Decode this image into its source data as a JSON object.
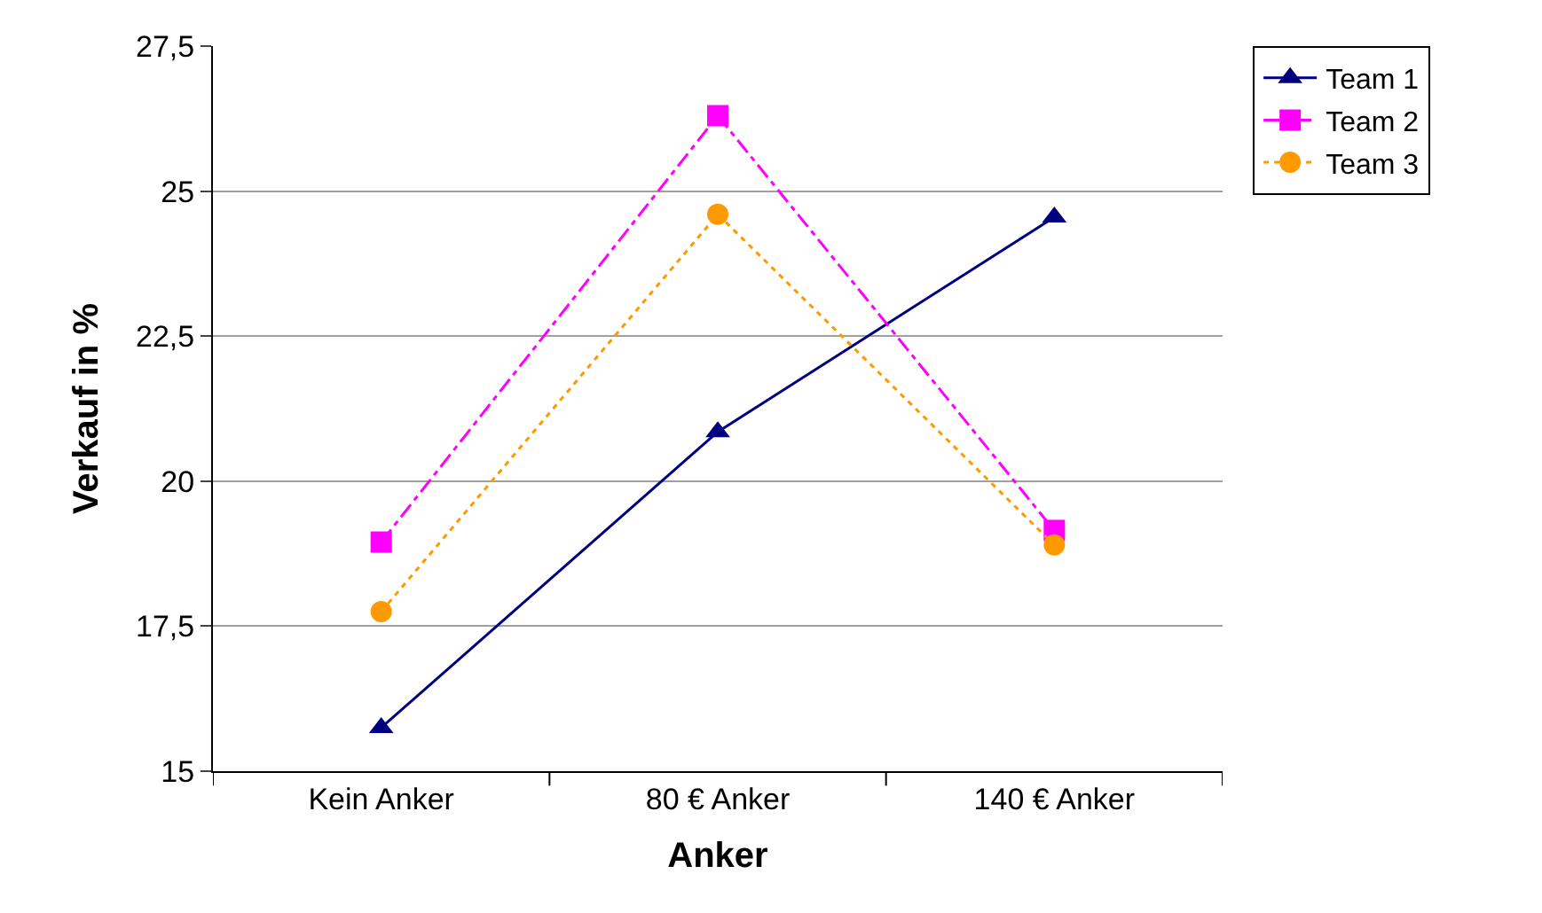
{
  "chart_data": {
    "type": "line",
    "categories": [
      "Kein Anker",
      "80 € Anker",
      "140 € Anker"
    ],
    "xlabel": "Anker",
    "ylabel": "Verkauf in %",
    "series": [
      {
        "name": "Team 1",
        "color": "#000080",
        "values": [
          15.75,
          20.85,
          24.55
        ],
        "marker": "triangle",
        "line_style": "solid"
      },
      {
        "name": "Team 2",
        "color": "#ff00ff",
        "values": [
          18.95,
          26.3,
          19.15
        ],
        "marker": "square",
        "line_style": "dashed"
      },
      {
        "name": "Team 3",
        "color": "#ff9900",
        "values": [
          17.75,
          24.6,
          18.9
        ],
        "marker": "circle",
        "line_style": "dotted"
      }
    ],
    "ylim": [
      15,
      27.5
    ],
    "yticks": [
      15,
      {
        "value": 17.5,
        "label": "17,5"
      },
      20,
      {
        "value": 22.5,
        "label": "22,5"
      },
      25,
      {
        "value": 27.5,
        "label": "27,5"
      }
    ],
    "grid": "y",
    "legend": "top right"
  }
}
